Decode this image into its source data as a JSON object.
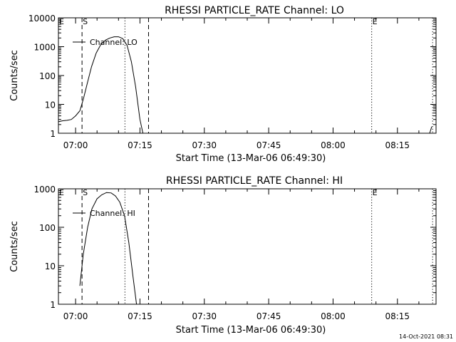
{
  "footer": {
    "timestamp": "14-Oct-2021 08:31"
  },
  "chart_data": [
    {
      "type": "line",
      "title": "RHESSI PARTICLE_RATE Channel: LO",
      "xlabel": "Start Time (13-Mar-06 06:49:30)",
      "ylabel": "Counts/sec",
      "yscale": "log",
      "xlim": [
        6.5,
        94.5
      ],
      "ylim": [
        1,
        10000
      ],
      "xticks": [
        {
          "value": 10.5,
          "label": "07:00"
        },
        {
          "value": 25.5,
          "label": "07:15"
        },
        {
          "value": 40.5,
          "label": "07:30"
        },
        {
          "value": 55.5,
          "label": "07:45"
        },
        {
          "value": 70.5,
          "label": "08:00"
        },
        {
          "value": 85.5,
          "label": "08:15"
        }
      ],
      "yticks": [
        {
          "value": 1,
          "label": "1"
        },
        {
          "value": 10,
          "label": "10"
        },
        {
          "value": 100,
          "label": "100"
        },
        {
          "value": 1000,
          "label": "1000"
        },
        {
          "value": 10000,
          "label": "10000"
        }
      ],
      "markers": [
        {
          "label": "S",
          "x": 12.0,
          "style": "dashed"
        },
        {
          "label": "",
          "x": 22.0,
          "style": "dotted"
        },
        {
          "label": "",
          "x": 27.5,
          "style": "dashed"
        },
        {
          "label": "E",
          "x": 79.5,
          "style": "dotted"
        },
        {
          "label": "",
          "x": 93.7,
          "style": "dotted"
        }
      ],
      "series": [
        {
          "name": "Channel: LO",
          "points": [
            [
              6.5,
              2.5
            ],
            [
              7.5,
              2.7
            ],
            [
              8.5,
              2.8
            ],
            [
              9.5,
              3.0
            ],
            [
              10.5,
              4.0
            ],
            [
              11.5,
              6.0
            ],
            [
              12.3,
              15
            ],
            [
              13.3,
              60
            ],
            [
              14.2,
              200
            ],
            [
              15.3,
              600
            ],
            [
              16.4,
              1200
            ],
            [
              17.5,
              1700
            ],
            [
              18.5,
              2000
            ],
            [
              19.5,
              2200
            ],
            [
              20.5,
              2200
            ],
            [
              21.5,
              1900
            ],
            [
              22.5,
              1100
            ],
            [
              23.5,
              300
            ],
            [
              24.5,
              40
            ],
            [
              25.5,
              3
            ],
            [
              26.2,
              1
            ]
          ]
        },
        {
          "name": "",
          "points": [
            [
              93.0,
              1
            ],
            [
              93.5,
              1.7
            ]
          ]
        }
      ]
    },
    {
      "type": "line",
      "title": "RHESSI PARTICLE_RATE Channel: HI",
      "xlabel": "Start Time (13-Mar-06 06:49:30)",
      "ylabel": "Counts/sec",
      "yscale": "log",
      "xlim": [
        6.5,
        94.5
      ],
      "ylim": [
        1,
        1000
      ],
      "xticks": [
        {
          "value": 10.5,
          "label": "07:00"
        },
        {
          "value": 25.5,
          "label": "07:15"
        },
        {
          "value": 40.5,
          "label": "07:30"
        },
        {
          "value": 55.5,
          "label": "07:45"
        },
        {
          "value": 70.5,
          "label": "08:00"
        },
        {
          "value": 85.5,
          "label": "08:15"
        }
      ],
      "yticks": [
        {
          "value": 1,
          "label": "1"
        },
        {
          "value": 10,
          "label": "10"
        },
        {
          "value": 100,
          "label": "100"
        },
        {
          "value": 1000,
          "label": "1000"
        }
      ],
      "markers": [
        {
          "label": "S",
          "x": 12.0,
          "style": "dashed"
        },
        {
          "label": "",
          "x": 22.0,
          "style": "dotted"
        },
        {
          "label": "",
          "x": 27.5,
          "style": "dashed"
        },
        {
          "label": "E",
          "x": 79.5,
          "style": "dotted"
        },
        {
          "label": "",
          "x": 93.7,
          "style": "dotted"
        }
      ],
      "series": [
        {
          "name": "Channel: HI",
          "points": [
            [
              11.5,
              3
            ],
            [
              12.3,
              20
            ],
            [
              13.3,
              100
            ],
            [
              14.3,
              300
            ],
            [
              15.5,
              550
            ],
            [
              16.6,
              700
            ],
            [
              17.7,
              800
            ],
            [
              18.8,
              780
            ],
            [
              19.8,
              650
            ],
            [
              20.8,
              450
            ],
            [
              21.9,
              200
            ],
            [
              22.9,
              40
            ],
            [
              23.9,
              5
            ],
            [
              24.7,
              1
            ]
          ]
        }
      ]
    }
  ]
}
